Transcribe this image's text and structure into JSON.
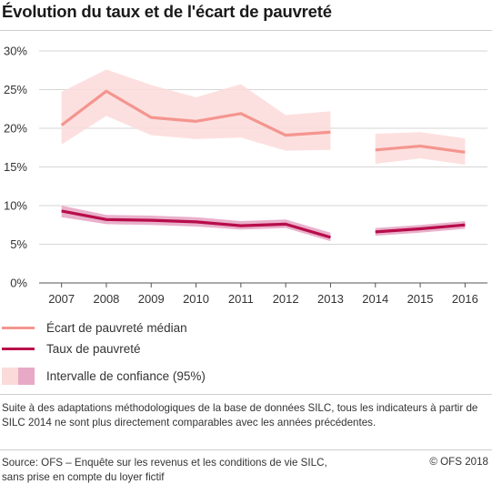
{
  "title": "Évolution du taux et de l'écart de pauvreté",
  "colors": {
    "gap_line": "#f4958f",
    "gap_band": "#fbdbd9",
    "rate_line": "#b80d4a",
    "rate_band": "#e7a9c6",
    "grid": "#d6d6d6",
    "axis": "#555555"
  },
  "chart_data": {
    "type": "line",
    "title": "Évolution du taux et de l'écart de pauvreté",
    "x_categories": [
      "2007",
      "2008",
      "2009",
      "2010",
      "2011",
      "2012",
      "2013",
      "2014",
      "2015",
      "2016"
    ],
    "y_ticks": [
      "0%",
      "5%",
      "10%",
      "15%",
      "20%",
      "25%",
      "30%"
    ],
    "ylim": [
      0,
      30
    ],
    "grid": true,
    "segments_break_between": [
      "2013",
      "2014"
    ],
    "series": [
      {
        "name": "Écart de pauvreté médian",
        "values": [
          20.4,
          24.8,
          21.4,
          20.9,
          21.9,
          19.1,
          19.5,
          17.2,
          17.7,
          16.9
        ],
        "ci_low": [
          17.9,
          21.6,
          19.1,
          18.6,
          18.8,
          17.1,
          17.2,
          15.4,
          16.1,
          15.3
        ],
        "ci_high": [
          24.7,
          27.6,
          25.6,
          24.0,
          25.7,
          21.7,
          22.2,
          19.3,
          19.5,
          18.7
        ]
      },
      {
        "name": "Taux de pauvreté",
        "values": [
          9.3,
          8.2,
          8.1,
          7.9,
          7.4,
          7.6,
          5.9,
          6.6,
          7.0,
          7.5
        ],
        "ci_low": [
          8.5,
          7.6,
          7.5,
          7.3,
          6.9,
          7.1,
          5.4,
          6.1,
          6.5,
          7.0
        ],
        "ci_high": [
          10.0,
          8.8,
          8.7,
          8.5,
          8.0,
          8.2,
          6.5,
          7.1,
          7.5,
          8.0
        ]
      }
    ]
  },
  "legend": {
    "gap": "Écart de pauvreté médian",
    "rate": "Taux de pauvreté",
    "confidence": "Intervalle de confiance (95%)"
  },
  "note": "Suite à des adaptations méthodologiques de la base de données SILC, tous les indicateurs à partir de SILC 2014 ne sont plus directement comparables avec les années précédentes.",
  "footer": {
    "source_line1": "Source: OFS – Enquête sur les revenus et les conditions de vie SILC,",
    "source_line2": "sans prise en compte du loyer fictif",
    "copyright": "© OFS 2018"
  }
}
